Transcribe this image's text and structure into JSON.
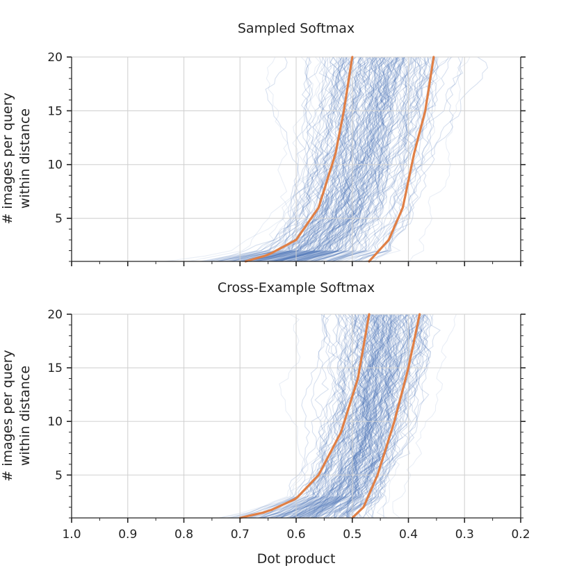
{
  "figure": {
    "xlabel": "Dot product",
    "colors": {
      "bundle": "#4a72b8",
      "quantile": "#e07f45",
      "grid": "#cfcfcf",
      "axis": "#222222"
    }
  },
  "chart_data": [
    {
      "type": "line",
      "title": "Sampled Softmax",
      "xlabel": "",
      "ylabel": "# images per query\nwithin distance",
      "ylabel_lines": [
        "# images per query",
        "within distance"
      ],
      "xlim": [
        1.0,
        0.2
      ],
      "ylim": [
        1,
        20
      ],
      "x_reversed": true,
      "x_ticks": [
        1.0,
        0.9,
        0.8,
        0.7,
        0.6,
        0.5,
        0.4,
        0.3,
        0.2
      ],
      "y_ticks": [
        5,
        10,
        15,
        20
      ],
      "grid": true,
      "bundle_center": [
        [
          0.62,
          1
        ],
        [
          0.55,
          2
        ],
        [
          0.51,
          5
        ],
        [
          0.48,
          10
        ],
        [
          0.455,
          15
        ],
        [
          0.44,
          20
        ]
      ],
      "series": [
        {
          "values": [
            [
              0.69,
              1
            ],
            [
              0.65,
              1.6
            ],
            [
              0.6,
              3
            ],
            [
              0.56,
              6
            ],
            [
              0.53,
              11
            ],
            [
              0.515,
              15
            ],
            [
              0.5,
              20
            ]
          ]
        },
        {
          "values": [
            [
              0.47,
              1
            ],
            [
              0.435,
              3
            ],
            [
              0.41,
              6
            ],
            [
              0.39,
              11
            ],
            [
              0.37,
              15
            ],
            [
              0.355,
              20
            ]
          ]
        }
      ]
    },
    {
      "type": "line",
      "title": "Cross-Example Softmax",
      "xlabel": "Dot product",
      "ylabel": "# images per query\nwithin distance",
      "ylabel_lines": [
        "# images per query",
        "within distance"
      ],
      "xlim": [
        1.0,
        0.2
      ],
      "ylim": [
        1,
        20
      ],
      "x_reversed": true,
      "x_ticks": [
        1.0,
        0.9,
        0.8,
        0.7,
        0.6,
        0.5,
        0.4,
        0.3,
        0.2
      ],
      "x_tick_labels": [
        "1.0",
        "0.9",
        "0.8",
        "0.7",
        "0.6",
        "0.5",
        "0.4",
        "0.3",
        "0.2"
      ],
      "y_ticks": [
        5,
        10,
        15,
        20
      ],
      "grid": true,
      "bundle_center": [
        [
          0.58,
          1
        ],
        [
          0.52,
          3
        ],
        [
          0.485,
          7
        ],
        [
          0.46,
          12
        ],
        [
          0.445,
          17
        ],
        [
          0.44,
          20
        ]
      ],
      "series": [
        {
          "values": [
            [
              0.7,
              1
            ],
            [
              0.65,
              1.6
            ],
            [
              0.6,
              2.8
            ],
            [
              0.56,
              5
            ],
            [
              0.52,
              9
            ],
            [
              0.49,
              14
            ],
            [
              0.47,
              20
            ]
          ]
        },
        {
          "values": [
            [
              0.5,
              1
            ],
            [
              0.48,
              2
            ],
            [
              0.455,
              5
            ],
            [
              0.425,
              10
            ],
            [
              0.4,
              15
            ],
            [
              0.38,
              20
            ]
          ]
        }
      ]
    }
  ]
}
